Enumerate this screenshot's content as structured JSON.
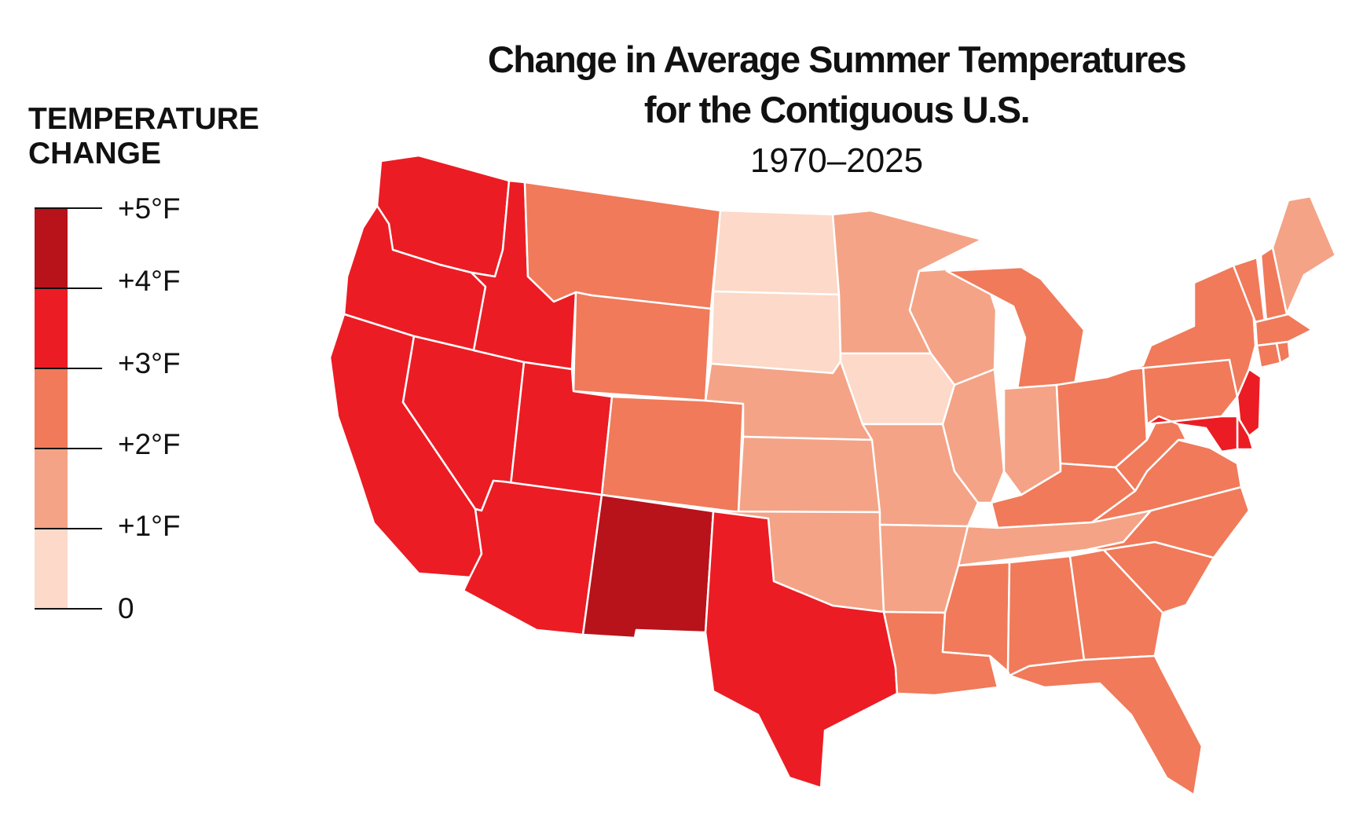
{
  "title": {
    "line1": "Change in Average Summer Temperatures",
    "line2": "for the Contiguous U.S."
  },
  "subtitle": "1970–2025",
  "legend": {
    "title_line1": "TEMPERATURE",
    "title_line2": "CHANGE",
    "bins": [
      {
        "range": "+4 to +5",
        "color": "#b8121b"
      },
      {
        "range": "+3 to +4",
        "color": "#ec1c24"
      },
      {
        "range": "+2 to +3",
        "color": "#f07a5a"
      },
      {
        "range": "+1 to +2",
        "color": "#f4a386"
      },
      {
        "range": "0 to +1",
        "color": "#fcd9c8"
      }
    ],
    "ticks": [
      "+5°F",
      "+4°F",
      "+3°F",
      "+2°F",
      "+1°F",
      "0"
    ]
  },
  "states": [
    {
      "name": "Washington",
      "change": "+3 to +4",
      "color": "#ec1c24"
    },
    {
      "name": "Oregon",
      "change": "+3 to +4",
      "color": "#ec1c24"
    },
    {
      "name": "California",
      "change": "+3 to +4",
      "color": "#ec1c24"
    },
    {
      "name": "Nevada",
      "change": "+3 to +4",
      "color": "#ec1c24"
    },
    {
      "name": "Idaho",
      "change": "+3 to +4",
      "color": "#ec1c24"
    },
    {
      "name": "Utah",
      "change": "+3 to +4",
      "color": "#ec1c24"
    },
    {
      "name": "Arizona",
      "change": "+3 to +4",
      "color": "#ec1c24"
    },
    {
      "name": "Texas",
      "change": "+3 to +4",
      "color": "#ec1c24"
    },
    {
      "name": "New Jersey",
      "change": "+3 to +4",
      "color": "#ec1c24"
    },
    {
      "name": "Delaware",
      "change": "+3 to +4",
      "color": "#ec1c24"
    },
    {
      "name": "Maryland",
      "change": "+3 to +4",
      "color": "#ec1c24"
    },
    {
      "name": "New Mexico",
      "change": "+4 to +5",
      "color": "#b8121b"
    },
    {
      "name": "Montana",
      "change": "+2 to +3",
      "color": "#f07a5a"
    },
    {
      "name": "Wyoming",
      "change": "+2 to +3",
      "color": "#f07a5a"
    },
    {
      "name": "Colorado",
      "change": "+2 to +3",
      "color": "#f07a5a"
    },
    {
      "name": "Michigan",
      "change": "+2 to +3",
      "color": "#f07a5a"
    },
    {
      "name": "Ohio",
      "change": "+2 to +3",
      "color": "#f07a5a"
    },
    {
      "name": "Kentucky",
      "change": "+2 to +3",
      "color": "#f07a5a"
    },
    {
      "name": "West Virginia",
      "change": "+2 to +3",
      "color": "#f07a5a"
    },
    {
      "name": "Virginia",
      "change": "+2 to +3",
      "color": "#f07a5a"
    },
    {
      "name": "North Carolina",
      "change": "+2 to +3",
      "color": "#f07a5a"
    },
    {
      "name": "South Carolina",
      "change": "+2 to +3",
      "color": "#f07a5a"
    },
    {
      "name": "Georgia",
      "change": "+2 to +3",
      "color": "#f07a5a"
    },
    {
      "name": "Florida",
      "change": "+2 to +3",
      "color": "#f07a5a"
    },
    {
      "name": "Alabama",
      "change": "+2 to +3",
      "color": "#f07a5a"
    },
    {
      "name": "Mississippi",
      "change": "+2 to +3",
      "color": "#f07a5a"
    },
    {
      "name": "Louisiana",
      "change": "+2 to +3",
      "color": "#f07a5a"
    },
    {
      "name": "Pennsylvania",
      "change": "+2 to +3",
      "color": "#f07a5a"
    },
    {
      "name": "New York",
      "change": "+2 to +3",
      "color": "#f07a5a"
    },
    {
      "name": "Vermont",
      "change": "+2 to +3",
      "color": "#f07a5a"
    },
    {
      "name": "New Hampshire",
      "change": "+2 to +3",
      "color": "#f07a5a"
    },
    {
      "name": "Massachusetts",
      "change": "+2 to +3",
      "color": "#f07a5a"
    },
    {
      "name": "Connecticut",
      "change": "+2 to +3",
      "color": "#f07a5a"
    },
    {
      "name": "Rhode Island",
      "change": "+2 to +3",
      "color": "#f07a5a"
    },
    {
      "name": "Maine",
      "change": "+1 to +2",
      "color": "#f4a386"
    },
    {
      "name": "Minnesota",
      "change": "+1 to +2",
      "color": "#f4a386"
    },
    {
      "name": "Wisconsin",
      "change": "+1 to +2",
      "color": "#f4a386"
    },
    {
      "name": "Nebraska",
      "change": "+1 to +2",
      "color": "#f4a386"
    },
    {
      "name": "Kansas",
      "change": "+1 to +2",
      "color": "#f4a386"
    },
    {
      "name": "Oklahoma",
      "change": "+1 to +2",
      "color": "#f4a386"
    },
    {
      "name": "Missouri",
      "change": "+1 to +2",
      "color": "#f4a386"
    },
    {
      "name": "Arkansas",
      "change": "+1 to +2",
      "color": "#f4a386"
    },
    {
      "name": "Illinois",
      "change": "+1 to +2",
      "color": "#f4a386"
    },
    {
      "name": "Indiana",
      "change": "+1 to +2",
      "color": "#f4a386"
    },
    {
      "name": "Tennessee",
      "change": "+1 to +2",
      "color": "#f4a386"
    },
    {
      "name": "North Dakota",
      "change": "0 to +1",
      "color": "#fcd9c8"
    },
    {
      "name": "South Dakota",
      "change": "0 to +1",
      "color": "#fcd9c8"
    },
    {
      "name": "Iowa",
      "change": "0 to +1",
      "color": "#fcd9c8"
    }
  ]
}
